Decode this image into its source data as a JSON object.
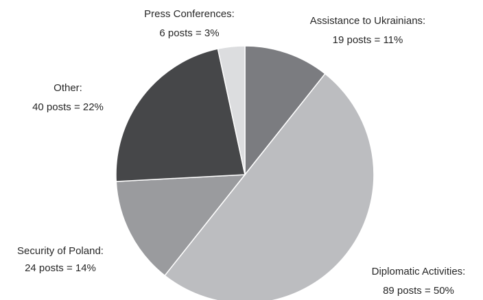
{
  "chart_data": {
    "type": "pie",
    "title": "",
    "start": "top",
    "direction": "clockwise",
    "slices": [
      {
        "category": "Assistance to Ukrainians:",
        "posts_label": "19 posts = 11%",
        "posts": 19,
        "percent": 11,
        "color": "#7b7c80"
      },
      {
        "category": "Diplomatic Activities:",
        "posts_label": "89  posts = 50%",
        "posts": 89,
        "percent": 50,
        "color": "#bcbdc0"
      },
      {
        "category": "Security of Poland:",
        "posts_label": "24 posts = 14%",
        "posts": 24,
        "percent": 14,
        "color": "#9a9b9e"
      },
      {
        "category": "Other:",
        "posts_label": "40 posts = 22%",
        "posts": 40,
        "percent": 22,
        "color": "#464749"
      },
      {
        "category": "Press Conferences:",
        "posts_label": "6 posts = 3%",
        "posts": 6,
        "percent": 3,
        "color": "#dcdddf"
      }
    ]
  }
}
